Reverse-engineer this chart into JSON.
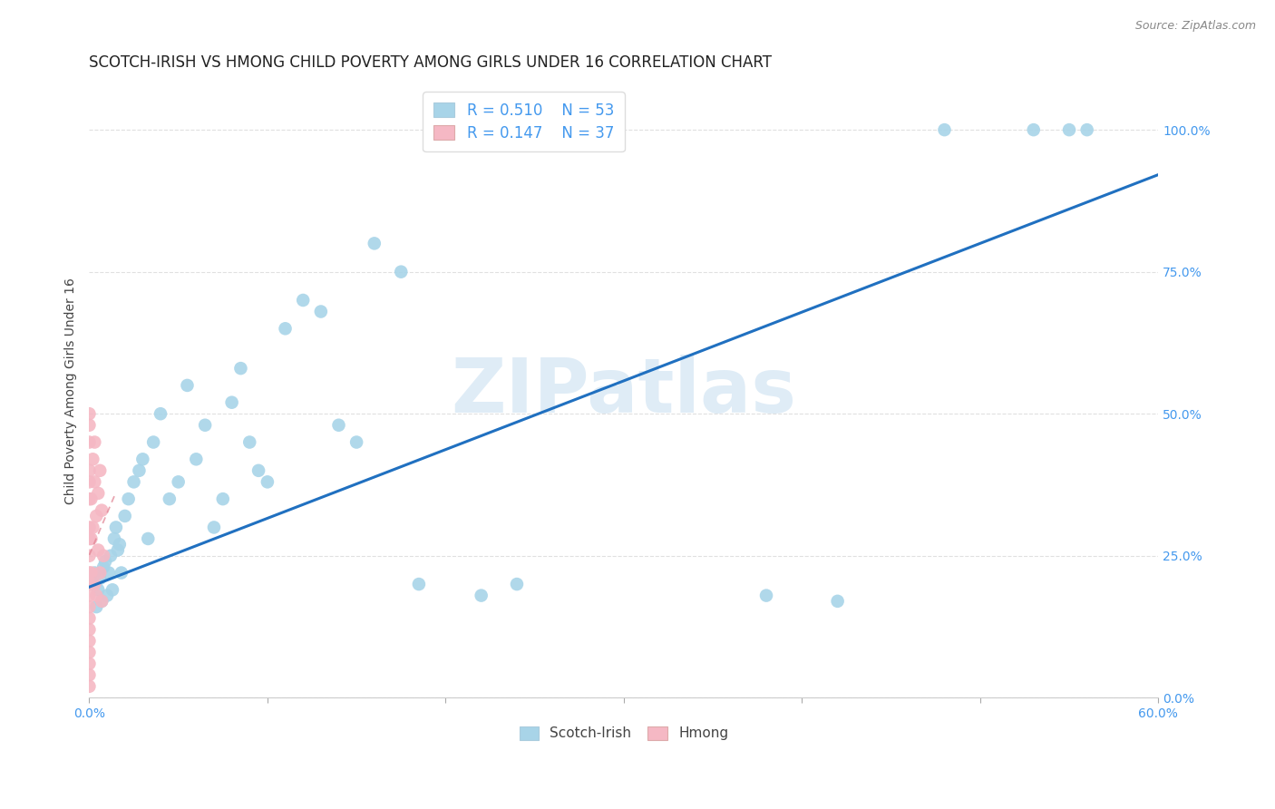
{
  "title": "SCOTCH-IRISH VS HMONG CHILD POVERTY AMONG GIRLS UNDER 16 CORRELATION CHART",
  "source": "Source: ZipAtlas.com",
  "ylabel": "Child Poverty Among Girls Under 16",
  "watermark": "ZIPatlas",
  "legend_blue_r": "R = 0.510",
  "legend_blue_n": "N = 53",
  "legend_pink_r": "R = 0.147",
  "legend_pink_n": "N = 37",
  "blue_color": "#a8d4e8",
  "pink_color": "#f5b8c4",
  "blue_line_color": "#2070c0",
  "pink_line_color": "#e08090",
  "grid_color": "#e0e0e0",
  "background_color": "#ffffff",
  "xlim": [
    0.0,
    0.6
  ],
  "ylim": [
    0.0,
    1.08
  ],
  "si_x": [
    0.002,
    0.003,
    0.004,
    0.005,
    0.006,
    0.007,
    0.008,
    0.009,
    0.01,
    0.011,
    0.012,
    0.013,
    0.014,
    0.015,
    0.016,
    0.017,
    0.018,
    0.02,
    0.022,
    0.025,
    0.028,
    0.03,
    0.033,
    0.036,
    0.04,
    0.045,
    0.05,
    0.055,
    0.06,
    0.065,
    0.07,
    0.075,
    0.08,
    0.085,
    0.09,
    0.095,
    0.1,
    0.11,
    0.12,
    0.13,
    0.14,
    0.15,
    0.16,
    0.175,
    0.185,
    0.22,
    0.24,
    0.38,
    0.42,
    0.48,
    0.53,
    0.55,
    0.56
  ],
  "si_y": [
    0.2,
    0.22,
    0.16,
    0.19,
    0.21,
    0.17,
    0.23,
    0.24,
    0.18,
    0.22,
    0.25,
    0.19,
    0.28,
    0.3,
    0.26,
    0.27,
    0.22,
    0.32,
    0.35,
    0.38,
    0.4,
    0.42,
    0.28,
    0.45,
    0.5,
    0.35,
    0.38,
    0.55,
    0.42,
    0.48,
    0.3,
    0.35,
    0.52,
    0.58,
    0.45,
    0.4,
    0.38,
    0.65,
    0.7,
    0.68,
    0.48,
    0.45,
    0.8,
    0.75,
    0.2,
    0.18,
    0.2,
    0.18,
    0.17,
    1.0,
    1.0,
    1.0,
    1.0
  ],
  "hm_x": [
    0.0,
    0.0,
    0.0,
    0.0,
    0.0,
    0.0,
    0.0,
    0.0,
    0.0,
    0.0,
    0.0,
    0.0,
    0.0,
    0.0,
    0.0,
    0.0,
    0.0,
    0.0,
    0.0,
    0.0,
    0.001,
    0.001,
    0.001,
    0.002,
    0.002,
    0.003,
    0.003,
    0.003,
    0.004,
    0.004,
    0.005,
    0.005,
    0.006,
    0.006,
    0.007,
    0.007,
    0.008
  ],
  "hm_y": [
    0.48,
    0.45,
    0.4,
    0.38,
    0.35,
    0.3,
    0.28,
    0.25,
    0.22,
    0.2,
    0.18,
    0.16,
    0.14,
    0.12,
    0.1,
    0.08,
    0.06,
    0.04,
    0.02,
    0.5,
    0.35,
    0.28,
    0.22,
    0.42,
    0.3,
    0.45,
    0.38,
    0.2,
    0.32,
    0.18,
    0.36,
    0.26,
    0.4,
    0.22,
    0.33,
    0.17,
    0.25
  ],
  "title_fontsize": 12,
  "source_fontsize": 9,
  "axis_label_fontsize": 10,
  "tick_fontsize": 10,
  "legend_fontsize": 12,
  "watermark_fontsize": 60
}
